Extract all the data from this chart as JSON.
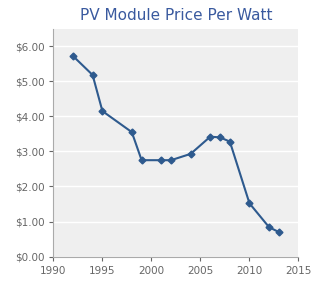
{
  "title": "PV Module Price Per Watt",
  "title_color": "#3A5A9F",
  "title_fontsize": 11,
  "years": [
    1992,
    1994,
    1995,
    1998,
    1999,
    2001,
    2002,
    2004,
    2006,
    2007,
    2008,
    2010,
    2012,
    2013
  ],
  "prices": [
    5.72,
    5.18,
    4.15,
    3.55,
    2.75,
    2.75,
    2.75,
    2.93,
    3.42,
    3.4,
    3.28,
    1.52,
    0.84,
    0.7
  ],
  "line_color": "#2E5A8E",
  "marker": "D",
  "marker_size": 3.5,
  "xlim": [
    1990,
    2015
  ],
  "ylim": [
    0.0,
    6.5
  ],
  "yticks": [
    0.0,
    1.0,
    2.0,
    3.0,
    4.0,
    5.0,
    6.0
  ],
  "xticks": [
    1990,
    1995,
    2000,
    2005,
    2010,
    2015
  ],
  "bg_color": "#FFFFFF",
  "plot_bg_color": "#EFEFEF",
  "grid_color": "#FFFFFF",
  "spine_color": "#AAAAAA",
  "tick_color": "#666666",
  "tick_label_fontsize": 7.5,
  "linewidth": 1.5
}
